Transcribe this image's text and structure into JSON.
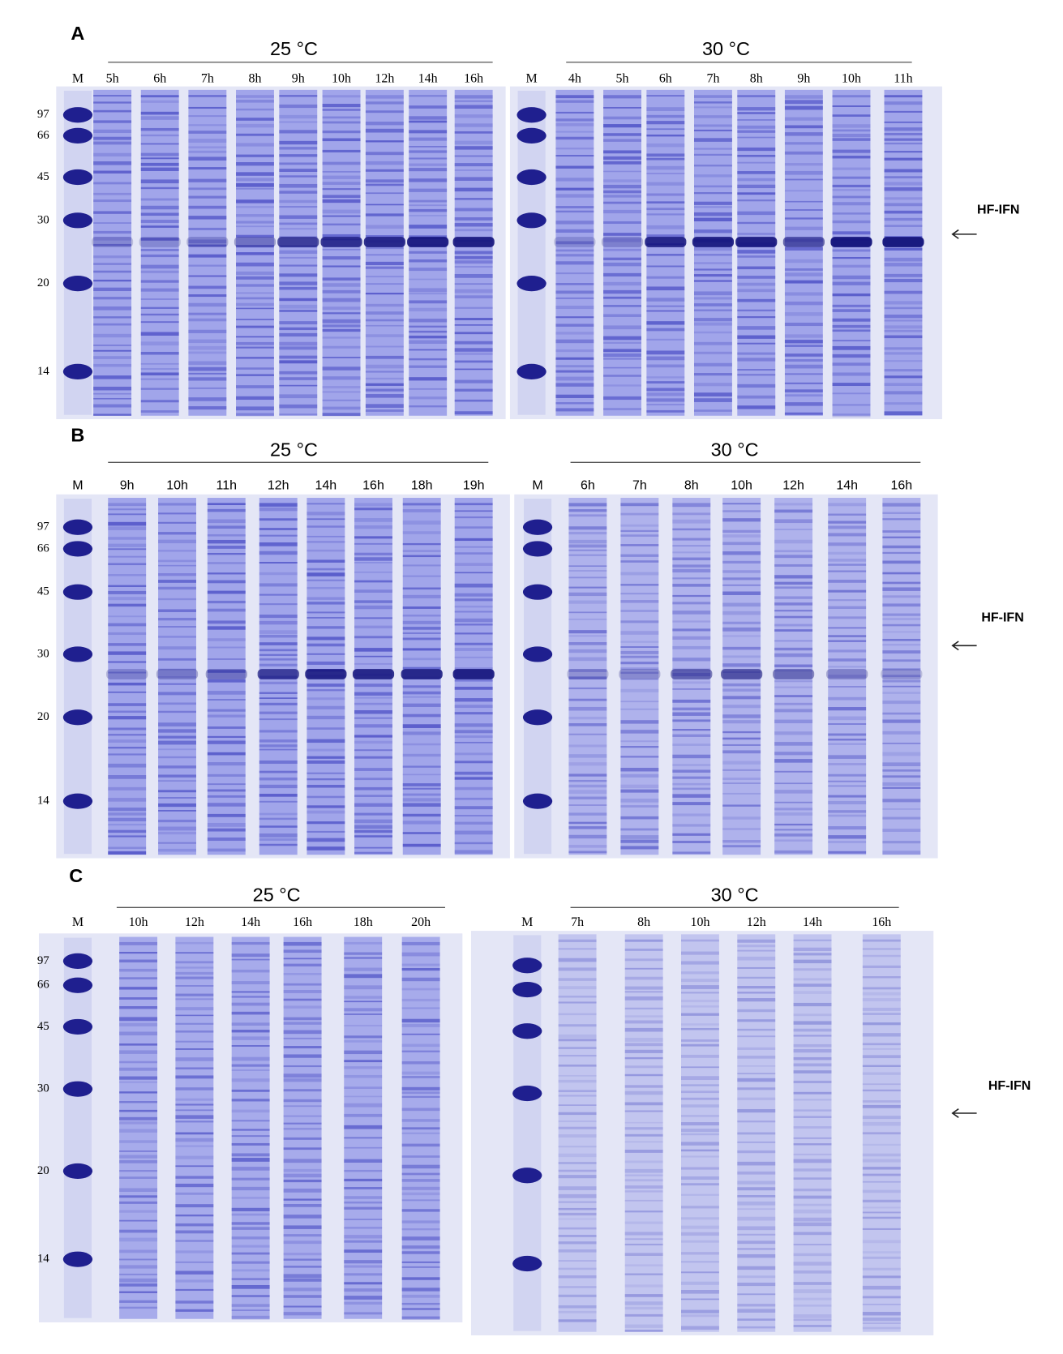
{
  "panels": [
    {
      "label": "A",
      "left": {
        "temperature": "25 °C",
        "marker_lane": "M",
        "lanes": [
          "5h",
          "6h",
          "7h",
          "8h",
          "9h",
          "10h",
          "12h",
          "14h",
          "16h"
        ]
      },
      "right": {
        "temperature": "30 °C",
        "marker_lane": "M",
        "lanes": [
          "4h",
          "5h",
          "6h",
          "7h",
          "8h",
          "9h",
          "10h",
          "11h"
        ]
      },
      "mw_markers": [
        97,
        66,
        45,
        30,
        20,
        14
      ],
      "band_label": "HF-IFN"
    },
    {
      "label": "B",
      "left": {
        "temperature": "25 °C",
        "marker_lane": "M",
        "lanes": [
          "9h",
          "10h",
          "11h",
          "12h",
          "14h",
          "16h",
          "18h",
          "19h"
        ]
      },
      "right": {
        "temperature": "30 °C",
        "marker_lane": "M",
        "lanes": [
          "6h",
          "7h",
          "8h",
          "10h",
          "12h",
          "14h",
          "16h"
        ]
      },
      "mw_markers": [
        97,
        66,
        45,
        30,
        20,
        14
      ],
      "band_label": "HF-IFN"
    },
    {
      "label": "C",
      "left": {
        "temperature": "25 °C",
        "marker_lane": "M",
        "lanes": [
          "10h",
          "12h",
          "14h",
          "16h",
          "18h",
          "20h"
        ]
      },
      "right": {
        "temperature": "30 °C",
        "marker_lane": "M",
        "lanes": [
          "7h",
          "8h",
          "10h",
          "12h",
          "14h",
          "16h"
        ]
      },
      "mw_markers": [
        97,
        66,
        45,
        30,
        20,
        14
      ],
      "band_label": "HF-IFN"
    }
  ]
}
